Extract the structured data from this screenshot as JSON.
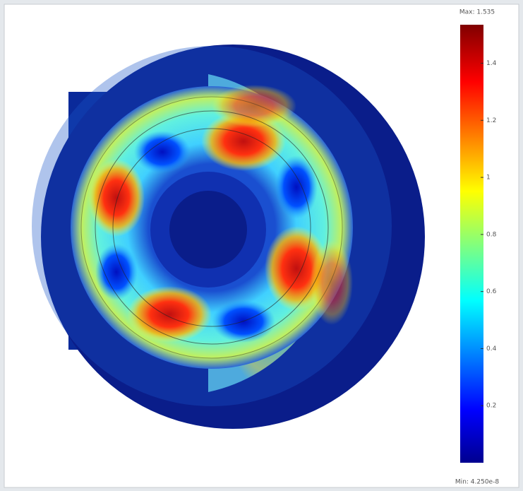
{
  "colorbar": {
    "max_label": "Max: 1.535",
    "min_label": "Min: 4.250e-8",
    "range": [
      4.25e-08,
      1.535
    ],
    "ticks": [
      1.4,
      1.2,
      1,
      0.8,
      0.6,
      0.4,
      0.2
    ]
  }
}
